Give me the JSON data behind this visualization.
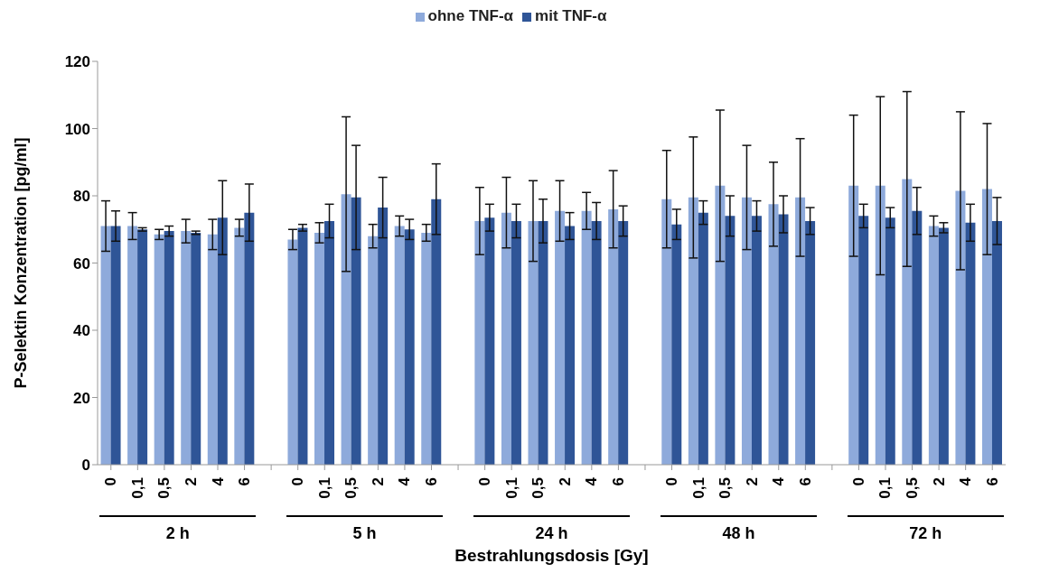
{
  "chart_data": {
    "type": "bar",
    "xlabel": "Bestrahlungsdosis [Gy]",
    "ylabel": "P-Selektin Konzentration [pg/ml]",
    "categories": [
      "0",
      "0,1",
      "0,5",
      "2",
      "4",
      "6",
      null,
      "0",
      "0,1",
      "0,5",
      "2",
      "4",
      "6",
      null,
      "0",
      "0,1",
      "0,5",
      "2",
      "4",
      "6",
      null,
      "0",
      "0,1",
      "0,5",
      "2",
      "4",
      "6",
      null,
      "0",
      "0,1",
      "0,5",
      "2",
      "4",
      "6"
    ],
    "series": [
      {
        "name": "ohne TNF-α",
        "color": "#8eaadb",
        "values": [
          71,
          71,
          68.5,
          69.5,
          68.5,
          70.5,
          null,
          67,
          69,
          80.5,
          68,
          71,
          69,
          null,
          72.5,
          75,
          72.5,
          75.5,
          75.5,
          76,
          null,
          79,
          79.5,
          83,
          79.5,
          77.5,
          79.5,
          null,
          83,
          83,
          85,
          71,
          81.5,
          82
        ],
        "errors": [
          7.5,
          4,
          1.5,
          3.5,
          4.5,
          2.5,
          null,
          3,
          3,
          23,
          3.5,
          3,
          2.5,
          null,
          10,
          10.5,
          12,
          9,
          5.5,
          11.5,
          null,
          14.5,
          18,
          22.5,
          15.5,
          12.5,
          17.5,
          null,
          21,
          26.5,
          26,
          3,
          23.5,
          19.5
        ]
      },
      {
        "name": "mit TNF-α",
        "color": "#2f5597",
        "values": [
          71,
          70,
          69.5,
          69,
          73.5,
          75,
          null,
          70.5,
          72.5,
          79.5,
          76.5,
          70,
          79,
          null,
          73.5,
          72.5,
          72.5,
          71,
          72.5,
          72.5,
          null,
          71.5,
          75,
          74,
          74,
          74.5,
          72.5,
          null,
          74,
          73.5,
          75.5,
          70.5,
          72,
          72.5
        ],
        "errors": [
          4.5,
          0.5,
          1.5,
          0.5,
          11,
          8.5,
          null,
          1,
          5,
          15.5,
          9,
          3,
          10.5,
          null,
          4,
          5,
          6.5,
          4,
          5.5,
          4.5,
          null,
          4.5,
          3.5,
          6,
          4.5,
          5.5,
          4,
          null,
          3.5,
          3,
          7,
          1.5,
          5.5,
          7
        ]
      }
    ],
    "ylim": [
      0,
      120
    ],
    "yticks": [
      0,
      20,
      40,
      60,
      80,
      100,
      120
    ],
    "legend": "top",
    "annotations": [
      "2 h",
      "5 h",
      "24 h",
      "48 h",
      "72 h"
    ]
  }
}
